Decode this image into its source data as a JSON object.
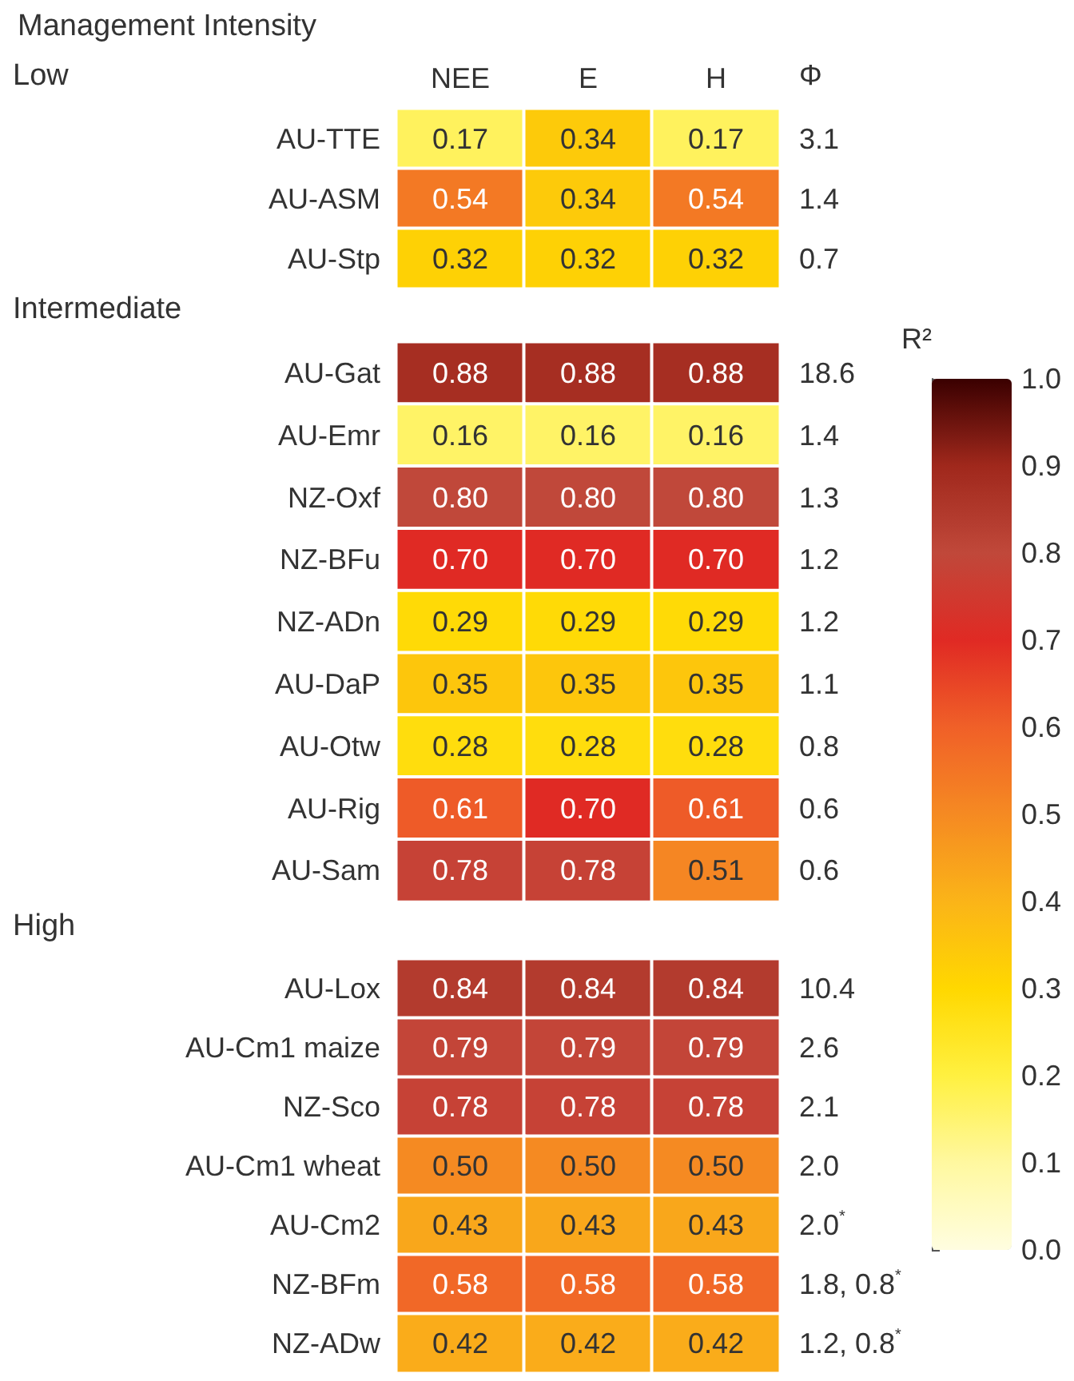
{
  "chart_data": [
    {
      "type": "heatmap",
      "title": "Management Intensity",
      "ylabel": "Low",
      "categories": [
        "NEE",
        "E",
        "H"
      ],
      "y_categories": [
        "AU-TTE",
        "AU-ASM",
        "AU-Stp"
      ],
      "y2_categories": [
        "3.1",
        "1.4",
        "0.7"
      ],
      "y2label": "Φ",
      "cells": [
        [
          0.17,
          0.34,
          0.17
        ],
        [
          0.54,
          0.34,
          0.54
        ],
        [
          0.32,
          0.32,
          0.32
        ]
      ],
      "cell_labels": [
        [
          "0.17",
          "0.34",
          "0.17"
        ],
        [
          "0.54",
          "0.34",
          "0.54"
        ],
        [
          "0.32",
          "0.32",
          "0.32"
        ]
      ],
      "data_labels": true
    },
    {
      "type": "heatmap",
      "ylabel": "Intermediate",
      "categories": [
        null,
        null,
        null
      ],
      "tick_labels": "y",
      "y_categories": [
        "AU-Gat",
        "AU-Emr",
        "NZ-Oxf",
        "NZ-BFu",
        "NZ-ADn",
        "AU-DaP",
        "AU-Otw",
        "AU-Rig",
        "AU-Sam"
      ],
      "y2_categories": [
        "18.6",
        "1.4",
        "1.3",
        "1.2",
        "1.2",
        "1.1",
        "0.8",
        "0.6",
        "0.6"
      ],
      "cells": [
        [
          0.88,
          0.88,
          0.88
        ],
        [
          0.16,
          0.16,
          0.16
        ],
        [
          0.8,
          0.8,
          0.8
        ],
        [
          0.7,
          0.7,
          0.7
        ],
        [
          0.29,
          0.29,
          0.29
        ],
        [
          0.35,
          0.35,
          0.35
        ],
        [
          0.28,
          0.28,
          0.28
        ],
        [
          0.61,
          0.7,
          0.61
        ],
        [
          0.78,
          0.78,
          0.51
        ]
      ],
      "cell_labels": [
        [
          "0.88",
          "0.88",
          "0.88"
        ],
        [
          "0.16",
          "0.16",
          "0.16"
        ],
        [
          "0.80",
          "0.80",
          "0.80"
        ],
        [
          "0.70",
          "0.70",
          "0.70"
        ],
        [
          "0.29",
          "0.29",
          "0.29"
        ],
        [
          "0.35",
          "0.35",
          "0.35"
        ],
        [
          "0.28",
          "0.28",
          "0.28"
        ],
        [
          "0.61",
          "0.70",
          "0.61"
        ],
        [
          "0.78",
          "0.78",
          "0.51"
        ]
      ],
      "clim": [
        0,
        1
      ],
      "cticks": [
        {
          "value": 0,
          "label": "0.0"
        },
        0.1,
        0.2,
        0.3,
        0.4,
        0.5,
        0.6,
        0.7,
        0.8,
        0.9,
        {
          "value": 1,
          "label": "1.0"
        }
      ],
      "clabel": "R²",
      "data_labels": true
    },
    {
      "type": "heatmap",
      "ylabel": "High",
      "categories": [
        null,
        null,
        null
      ],
      "tick_labels": "y",
      "y_categories": [
        "AU-Lox",
        "AU-Cm1 maize",
        "NZ-Sco",
        "AU-Cm1 wheat",
        "AU-Cm2",
        "NZ-BFm",
        "NZ-ADw"
      ],
      "y2_categories": [
        "10.4",
        "2.6",
        "2.1",
        "2.0",
        "2.0$^{*}$",
        "1.8, 0.8$^{*}$",
        "1.2, 0.8$^{*}$"
      ],
      "cells": [
        [
          0.84,
          0.84,
          0.84
        ],
        [
          0.79,
          0.79,
          0.79
        ],
        [
          0.78,
          0.78,
          0.78
        ],
        [
          0.5,
          0.5,
          0.5
        ],
        [
          0.43,
          0.43,
          0.43
        ],
        [
          0.58,
          0.58,
          0.58
        ],
        [
          0.42,
          0.42,
          0.42
        ]
      ],
      "cell_labels": [
        [
          "0.84",
          "0.84",
          "0.84"
        ],
        [
          "0.79",
          "0.79",
          "0.79"
        ],
        [
          "0.78",
          "0.78",
          "0.78"
        ],
        [
          "0.50",
          "0.50",
          "0.50"
        ],
        [
          "0.43",
          "0.43",
          "0.43"
        ],
        [
          "0.58",
          "0.58",
          "0.58"
        ],
        [
          "0.42",
          "0.42",
          "0.42"
        ]
      ],
      "data_labels": true
    }
  ]
}
